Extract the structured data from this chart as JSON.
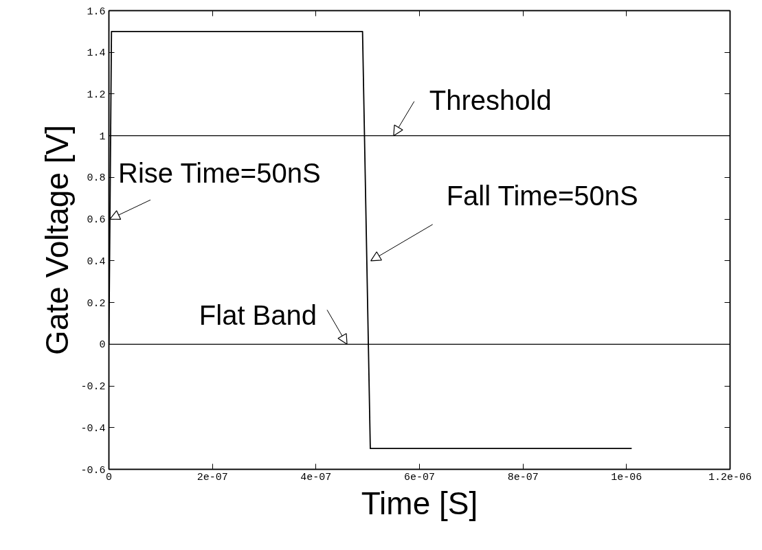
{
  "chart_data": {
    "type": "line",
    "xlabel": "Time [S]",
    "ylabel": "Gate Voltage [V]",
    "x": [
      0,
      5e-09,
      4.9e-07,
      5.05e-07,
      1.01e-06
    ],
    "series": [
      {
        "color": "#000000",
        "values": [
          0,
          1.5,
          1.5,
          -0.5,
          -0.5
        ]
      }
    ],
    "xlim": [
      0,
      1.2e-06
    ],
    "xticks": [
      0,
      {
        "value": 2e-07,
        "label": "2e-07"
      },
      {
        "value": 4e-07,
        "label": "4e-07"
      },
      {
        "value": 6e-07,
        "label": "6e-07"
      },
      {
        "value": 8e-07,
        "label": "8e-07"
      },
      {
        "value": 1e-06,
        "label": "1e-06"
      },
      {
        "value": 1.2e-06,
        "label": "1.2e-06"
      }
    ],
    "ylim": [
      -0.6,
      1.6
    ],
    "yticks": [
      -0.6,
      -0.4,
      -0.2,
      0,
      0.2,
      0.4,
      0.6,
      0.8,
      1,
      1.2,
      1.4,
      1.6
    ],
    "ref_lines": [
      {
        "axis": "y",
        "value": 1,
        "color": "#000000"
      },
      {
        "axis": "y",
        "value": 0,
        "color": "#000000"
      }
    ],
    "annotations": [
      {
        "text": "Rise Time=50nS",
        "x": 2e-09,
        "y": 0.6
      },
      {
        "text": "Threshold",
        "x": 5.5e-07,
        "y": 1
      },
      {
        "text": "Fall Time=50nS",
        "x": 5.06e-07,
        "y": 0.4
      },
      {
        "text": "Flat Band",
        "x": 4.6e-07,
        "y": 0
      }
    ],
    "grid": false,
    "marker": "none",
    "line_style": "solid"
  }
}
